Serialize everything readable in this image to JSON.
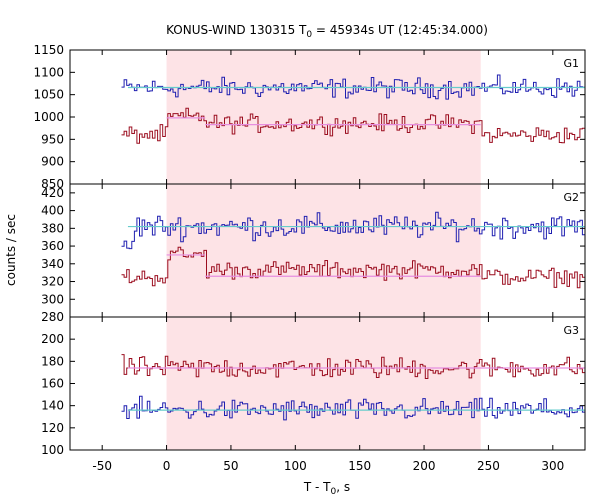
{
  "chart_data": {
    "type": "line",
    "title_prefix": "KONUS-WIND 130315 T",
    "title_sub": "0",
    "title_suffix": " = 45934s UT (12:45:34.000)",
    "xlabel_prefix": "T - T",
    "xlabel_sub": "0",
    "xlabel_suffix": ", s",
    "ylabel": "counts / sec",
    "xlim": [
      -75,
      325
    ],
    "x_ticks": [
      -50,
      0,
      50,
      100,
      150,
      200,
      250,
      300
    ],
    "highlight_interval": [
      0,
      244
    ],
    "colors": {
      "series_blue": "#1f1fb0",
      "series_red": "#9b0d1f",
      "fit_blue": "#66cccc",
      "fit_red": "#e68ee0",
      "highlight": "#fde3e6"
    },
    "panels": [
      {
        "label": "G1",
        "ylim": [
          850,
          1150
        ],
        "y_ticks": [
          850,
          900,
          950,
          1000,
          1050,
          1100,
          1150
        ],
        "series": [
          {
            "color_key": "series_blue",
            "x_start": -35,
            "x_end": 325,
            "mean": 1065,
            "noise": 18,
            "segments": []
          },
          {
            "color_key": "series_red",
            "x_start": -35,
            "x_end": 325,
            "mean": 960,
            "noise": 16,
            "segments": [
              {
                "from": 0,
                "to": 30,
                "mean": 1000
              },
              {
                "from": 30,
                "to": 244,
                "mean": 985
              }
            ]
          }
        ],
        "fits": [
          {
            "color_key": "fit_blue",
            "segments": [
              [
                -30,
                325,
                1066
              ]
            ]
          },
          {
            "color_key": "fit_red",
            "segments": [
              [
                0,
                30,
                998
              ],
              [
                30,
                244,
                983
              ]
            ]
          }
        ]
      },
      {
        "label": "G2",
        "ylim": [
          280,
          430
        ],
        "y_ticks": [
          280,
          300,
          320,
          340,
          360,
          380,
          400,
          420
        ],
        "series": [
          {
            "color_key": "series_blue",
            "x_start": -35,
            "x_end": 325,
            "mean": 382,
            "noise": 11,
            "segments": [
              {
                "from": -35,
                "to": -25,
                "mean": 360
              }
            ]
          },
          {
            "color_key": "series_red",
            "x_start": -35,
            "x_end": 325,
            "mean": 325,
            "noise": 8,
            "segments": [
              {
                "from": 0,
                "to": 30,
                "mean": 350
              },
              {
                "from": 30,
                "to": 244,
                "mean": 333
              }
            ]
          }
        ],
        "fits": [
          {
            "color_key": "fit_blue",
            "segments": [
              [
                -30,
                325,
                382
              ]
            ]
          },
          {
            "color_key": "fit_red",
            "segments": [
              [
                0,
                30,
                350
              ],
              [
                30,
                244,
                326
              ]
            ]
          }
        ]
      },
      {
        "label": "G3",
        "ylim": [
          100,
          220
        ],
        "y_ticks": [
          100,
          120,
          140,
          160,
          180,
          200
        ],
        "series": [
          {
            "color_key": "series_blue",
            "x_start": -35,
            "x_end": 325,
            "mean": 136,
            "noise": 8,
            "segments": []
          },
          {
            "color_key": "series_red",
            "x_start": -35,
            "x_end": 325,
            "mean": 174,
            "noise": 8,
            "segments": []
          }
        ],
        "fits": [
          {
            "color_key": "fit_blue",
            "segments": [
              [
                -30,
                325,
                136
              ]
            ]
          },
          {
            "color_key": "fit_red",
            "segments": [
              [
                -30,
                325,
                174
              ]
            ]
          }
        ]
      }
    ]
  }
}
